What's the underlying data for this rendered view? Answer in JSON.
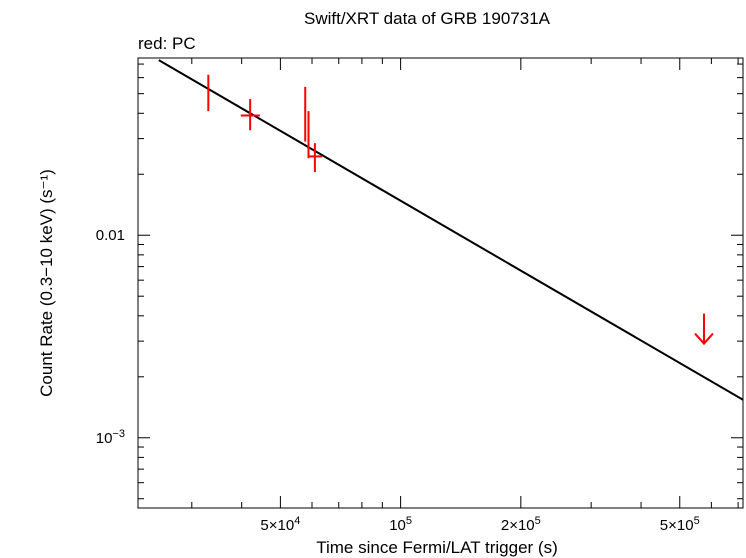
{
  "chart_data": {
    "type": "scatter",
    "title": "Swift/XRT data of GRB 190731A",
    "subtitle": "red: PC",
    "xlabel": "Time since Fermi/LAT trigger (s)",
    "ylabel": "Count Rate (0.3−10 keV) (s⁻¹)",
    "x_scale": "log",
    "y_scale": "log",
    "xlim": [
      22000,
      720000
    ],
    "ylim": [
      0.00045,
      0.075
    ],
    "x_ticks": [
      {
        "value": 50000,
        "mantissa": "5×10",
        "exp": "4"
      },
      {
        "value": 100000,
        "mantissa": "10",
        "exp": "5"
      },
      {
        "value": 200000,
        "mantissa": "2×10",
        "exp": "5"
      },
      {
        "value": 500000,
        "mantissa": "5×10",
        "exp": "5"
      }
    ],
    "y_ticks": [
      {
        "value": 0.01,
        "mantissa": "0.01",
        "exp": ""
      },
      {
        "value": 0.001,
        "mantissa": "10",
        "exp": "−3"
      }
    ],
    "series": [
      {
        "color": "#ff0000",
        "points": [
          {
            "x": 33000,
            "xerr": [
              0,
              0
            ],
            "y": 0.051,
            "yerr": [
              0.01,
              0.011
            ]
          },
          {
            "x": 42000,
            "xerr": [
              2200,
              2400
            ],
            "y": 0.039,
            "yerr": [
              0.006,
              0.008
            ]
          },
          {
            "x": 57700,
            "xerr": [
              0,
              0
            ],
            "y": 0.041,
            "yerr": [
              0.012,
              0.013
            ]
          },
          {
            "x": 58800,
            "xerr": [
              0,
              0
            ],
            "y": 0.032,
            "yerr": [
              0.008,
              0.009
            ]
          },
          {
            "x": 61000,
            "xerr": [
              2200,
              2600
            ],
            "y": 0.0245,
            "yerr": [
              0.004,
              0.004
            ]
          }
        ]
      }
    ],
    "upper_limits": [
      {
        "x": 575000,
        "y": 0.0035,
        "color": "#ff0000"
      }
    ],
    "model_line": {
      "color": "#000000",
      "points": [
        [
          24800,
          0.0732
        ],
        [
          720000,
          0.00154
        ]
      ]
    }
  }
}
